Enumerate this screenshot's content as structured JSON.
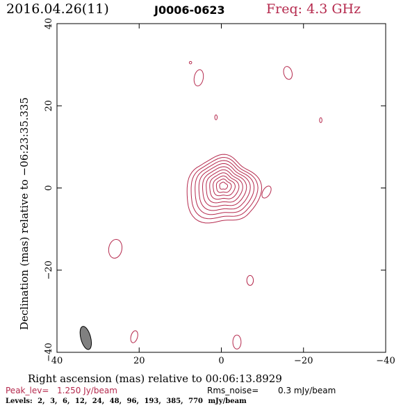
{
  "header": {
    "date": "2016.04.26(11)",
    "source": "J0006-0623",
    "freq": "Freq: 4.3 GHz"
  },
  "footer": {
    "peak_label": "Peak_lev=",
    "peak_value": "1.250 Jy/beam",
    "rms_label": "Rms_noise=",
    "rms_value": "0.3 mJy/beam",
    "levels": "Levels:  2,  3,  6,  12,  24,  48,  96, 193, 385, 770 mJy/beam"
  },
  "colors": {
    "contour": "#b5294d",
    "axes": "#000000",
    "beam": "#808080"
  },
  "chart_data": {
    "type": "contour",
    "xlabel": "Right ascension (mas) relative to 00:06:13.8929",
    "ylabel": "Declination (mas) relative to −06:23:35.335",
    "xlim": [
      40,
      -40
    ],
    "ylim": [
      -40,
      40
    ],
    "x_ticks": [
      {
        "value": 40,
        "label": "40"
      },
      {
        "value": 20,
        "label": "20"
      },
      {
        "value": 0,
        "label": "0"
      },
      {
        "value": -20,
        "label": "−20"
      },
      {
        "value": -40,
        "label": "−40"
      }
    ],
    "y_ticks": [
      {
        "value": -40,
        "label": "−40"
      },
      {
        "value": -20,
        "label": "−20"
      },
      {
        "value": 0,
        "label": "0"
      },
      {
        "value": 20,
        "label": "20"
      },
      {
        "value": 40,
        "label": "40"
      }
    ],
    "levels_mJy": [
      2,
      3,
      6,
      12,
      24,
      48,
      96,
      193,
      385,
      770
    ],
    "peak_Jy_per_beam": 1.25,
    "rms_mJy_per_beam": 0.3,
    "beam": {
      "x": 33,
      "y": -36.5,
      "major": 5.8,
      "minor": 2.4,
      "pa_deg": -15
    },
    "main_component": {
      "x": -0.5,
      "y": 0.5,
      "levels": 10
    },
    "noise_islands": [
      {
        "x": 7.5,
        "y": 30.5,
        "a": 0.3,
        "b": 0.3,
        "angle": 0
      },
      {
        "x": 5.5,
        "y": 26.8,
        "a": 1.1,
        "b": 2.0,
        "angle": 10
      },
      {
        "x": -16.2,
        "y": 28.0,
        "a": 1.0,
        "b": 1.6,
        "angle": -15
      },
      {
        "x": 1.3,
        "y": 17.2,
        "a": 0.3,
        "b": 0.6,
        "angle": 0
      },
      {
        "x": -24.2,
        "y": 16.5,
        "a": 0.3,
        "b": 0.6,
        "angle": 0
      },
      {
        "x": -11.0,
        "y": -1.0,
        "a": 0.9,
        "b": 1.6,
        "angle": 30
      },
      {
        "x": 25.8,
        "y": -14.8,
        "a": 1.6,
        "b": 2.3,
        "angle": 10
      },
      {
        "x": -7.0,
        "y": -22.5,
        "a": 0.8,
        "b": 1.2,
        "angle": 0
      },
      {
        "x": 21.2,
        "y": -36.2,
        "a": 0.8,
        "b": 1.5,
        "angle": 15
      },
      {
        "x": -3.8,
        "y": -37.5,
        "a": 1.0,
        "b": 1.7,
        "angle": 0
      }
    ]
  }
}
